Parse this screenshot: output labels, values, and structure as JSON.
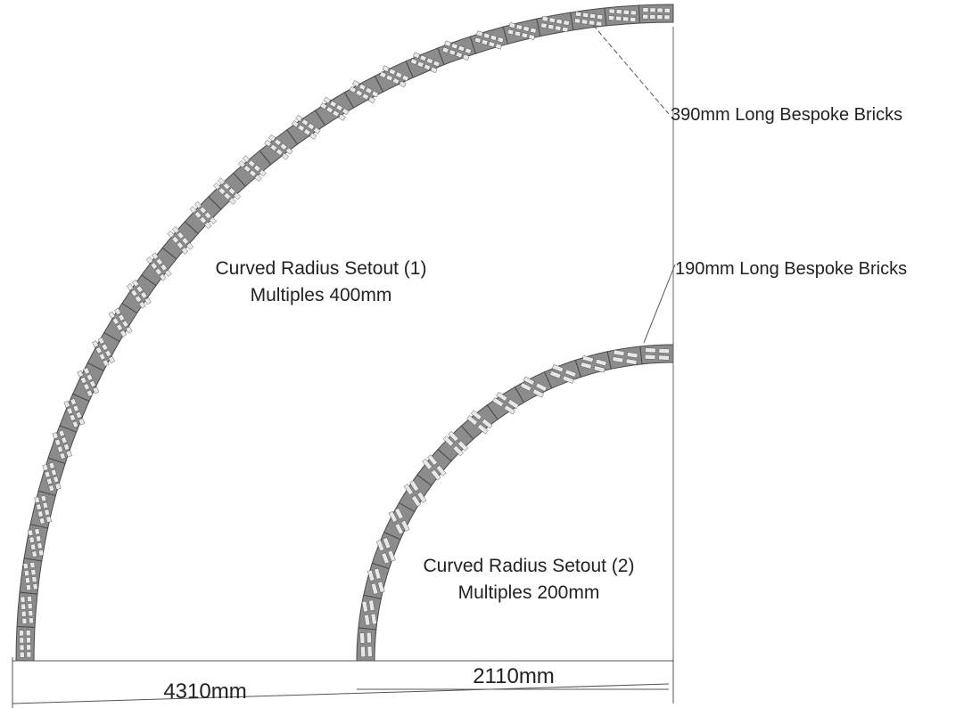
{
  "colors": {
    "brick_fill": "#8c8c8c",
    "brick_stroke": "#4a4a4a",
    "brick_slot": "#e8e8e8",
    "line": "#555555",
    "text": "#222222",
    "background": "#ffffff"
  },
  "labels": {
    "outer_bricks": "390mm Long Bespoke Bricks",
    "inner_bricks": "190mm Long Bespoke Bricks",
    "outer_setout_title": "Curved Radius Setout (1)",
    "outer_setout_multiples": "Multiples 400mm",
    "inner_setout_title": "Curved Radius Setout (2)",
    "inner_setout_multiples": "Multiples 200mm"
  },
  "dimensions": {
    "outer_radius": "4310mm",
    "inner_radius": "2110mm"
  }
}
